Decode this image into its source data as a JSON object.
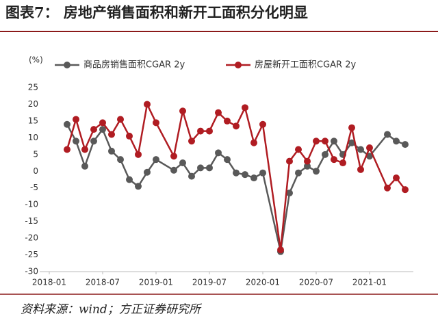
{
  "chart_data": {
    "type": "line",
    "title": "图表7：  房地产销售面积和新开工面积分化明显",
    "y_unit": "(%)",
    "source": "资料来源：wind；方正证券研究所",
    "x": [
      "2018-03",
      "2018-04",
      "2018-05",
      "2018-06",
      "2018-07",
      "2018-08",
      "2018-09",
      "2018-10",
      "2018-11",
      "2018-12",
      "2019-01",
      "2019-03",
      "2019-04",
      "2019-05",
      "2019-06",
      "2019-07",
      "2019-08",
      "2019-09",
      "2019-10",
      "2019-11",
      "2019-12",
      "2020-01",
      "2020-03",
      "2020-04",
      "2020-05",
      "2020-06",
      "2020-07",
      "2020-08",
      "2020-09",
      "2020-10",
      "2020-11",
      "2020-12",
      "2021-01",
      "2021-03",
      "2021-04",
      "2021-05"
    ],
    "series": [
      {
        "name": "商品房销售面积CGAR 2y",
        "color": "#595959",
        "values": [
          14,
          9,
          1.5,
          9,
          12.5,
          6,
          3.5,
          -2.5,
          -4.5,
          -0.3,
          3.5,
          0.3,
          2.5,
          -1.5,
          1,
          1,
          5.5,
          3.5,
          -0.5,
          -1,
          -2,
          -0.5,
          -24,
          -6.5,
          -0.5,
          1.5,
          0,
          5,
          9,
          5,
          8.5,
          6.5,
          4.5,
          11,
          9,
          8
        ]
      },
      {
        "name": "房屋新开工面积CGAR 2y",
        "color": "#b01c22",
        "values": [
          6.5,
          15.5,
          6.5,
          12.5,
          14.5,
          11,
          15.5,
          10.5,
          5,
          20,
          14.5,
          4.5,
          18,
          9,
          12,
          12,
          17.5,
          15,
          13.5,
          19,
          8.5,
          14,
          -23.5,
          3,
          6.5,
          3,
          9,
          9,
          3.5,
          2.5,
          13,
          0.5,
          7,
          -5,
          -2,
          -5.5
        ]
      }
    ],
    "ylim": [
      -30,
      25
    ],
    "yticks": [
      -30,
      -25,
      -20,
      -15,
      -10,
      -5,
      0,
      5,
      10,
      15,
      20,
      25
    ],
    "xticks": [
      "2018-01",
      "2018-07",
      "2019-01",
      "2019-07",
      "2020-01",
      "2020-07",
      "2021-01"
    ],
    "grid": false
  }
}
